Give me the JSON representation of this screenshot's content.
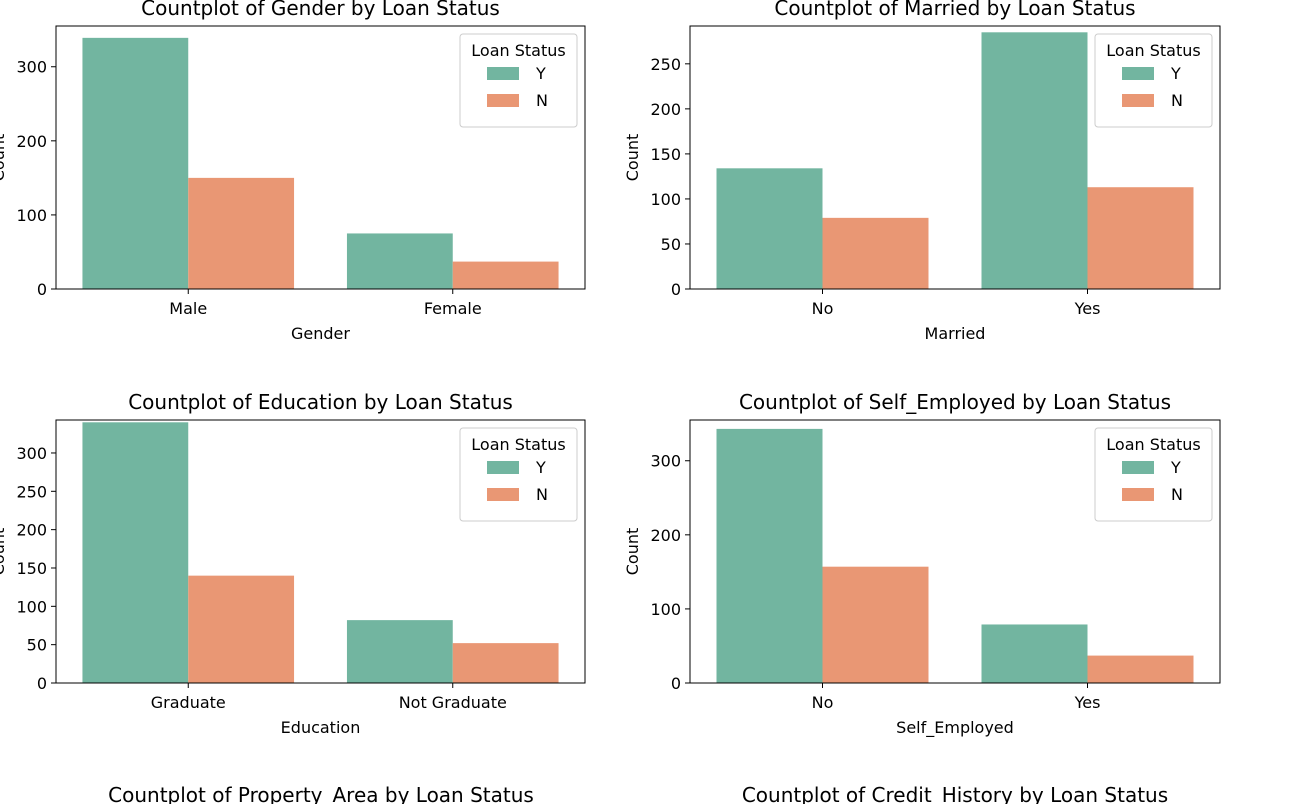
{
  "page": {
    "bottom_titles": [
      "Countplot of Property_Area by Loan Status",
      "Countplot of Credit_History by Loan Status"
    ]
  },
  "chart_data": [
    {
      "type": "bar",
      "title": "Countplot of Gender by Loan Status",
      "xlabel": "Gender",
      "ylabel": "Count",
      "categories": [
        "Male",
        "Female"
      ],
      "series": [
        {
          "name": "Y",
          "color": "#72b5a0",
          "values": [
            339,
            75
          ]
        },
        {
          "name": "N",
          "color": "#e99774",
          "values": [
            150,
            37
          ]
        }
      ],
      "ylim": [
        0,
        355
      ],
      "yticks": [
        0,
        100,
        200,
        300
      ],
      "grid": false,
      "legend": {
        "title": "Loan Status",
        "position": "top-right"
      }
    },
    {
      "type": "bar",
      "title": "Countplot of Married by Loan Status",
      "xlabel": "Married",
      "ylabel": "Count",
      "categories": [
        "No",
        "Yes"
      ],
      "series": [
        {
          "name": "Y",
          "color": "#72b5a0",
          "values": [
            134,
            285
          ]
        },
        {
          "name": "N",
          "color": "#e99774",
          "values": [
            79,
            113
          ]
        }
      ],
      "ylim": [
        0,
        292
      ],
      "yticks": [
        0,
        50,
        100,
        150,
        200,
        250
      ],
      "grid": false,
      "legend": {
        "title": "Loan Status",
        "position": "top-right"
      }
    },
    {
      "type": "bar",
      "title": "Countplot of Education by Loan Status",
      "xlabel": "Education",
      "ylabel": "Count",
      "categories": [
        "Graduate",
        "Not Graduate"
      ],
      "series": [
        {
          "name": "Y",
          "color": "#72b5a0",
          "values": [
            340,
            82
          ]
        },
        {
          "name": "N",
          "color": "#e99774",
          "values": [
            140,
            52
          ]
        }
      ],
      "ylim": [
        0,
        343
      ],
      "yticks": [
        0,
        50,
        100,
        150,
        200,
        250,
        300
      ],
      "grid": false,
      "legend": {
        "title": "Loan Status",
        "position": "top-right"
      }
    },
    {
      "type": "bar",
      "title": "Countplot of Self_Employed by Loan Status",
      "xlabel": "Self_Employed",
      "ylabel": "Count",
      "categories": [
        "No",
        "Yes"
      ],
      "series": [
        {
          "name": "Y",
          "color": "#72b5a0",
          "values": [
            343,
            79
          ]
        },
        {
          "name": "N",
          "color": "#e99774",
          "values": [
            157,
            37
          ]
        }
      ],
      "ylim": [
        0,
        355
      ],
      "yticks": [
        0,
        100,
        200,
        300
      ],
      "grid": false,
      "legend": {
        "title": "Loan Status",
        "position": "top-right"
      }
    }
  ]
}
